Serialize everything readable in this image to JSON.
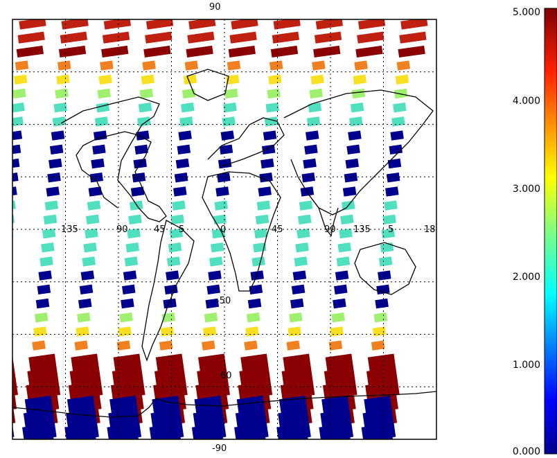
{
  "map": {
    "top_latitude_label": "90",
    "bottom_latitude_label": "-90",
    "equator_longitude_labels": [
      "135",
      "90",
      "45",
      "5",
      "0",
      "45",
      "90",
      "135",
      "5",
      "18"
    ],
    "south_labels": [
      "-50",
      "60"
    ]
  },
  "colorbar": {
    "ticks": [
      "5.000",
      "4.000",
      "3.000",
      "2.000",
      "1.000",
      "0.000"
    ],
    "tick_values": [
      5,
      4,
      3,
      2,
      1,
      0
    ],
    "colormap": "jet",
    "range": [
      0,
      5
    ]
  },
  "colors": {
    "low": "#00008f",
    "cyan": "#50e0c0",
    "green": "#a0f070",
    "yellow": "#f8e020",
    "orange": "#f08020",
    "red": "#c02010",
    "darkred": "#8b0000",
    "coast": "#000000"
  }
}
